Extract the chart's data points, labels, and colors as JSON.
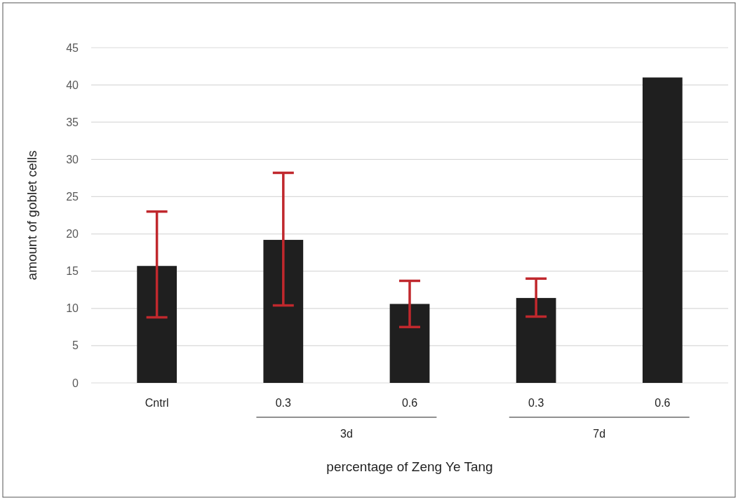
{
  "chart_data": {
    "type": "bar",
    "xlabel": "percentage of Zeng Ye Tang",
    "ylabel": "amount of goblet cells",
    "categories": [
      "Cntrl",
      "0.3",
      "0.6",
      "0.3",
      "0.6"
    ],
    "values": [
      15.7,
      19.2,
      10.6,
      11.4,
      41.0
    ],
    "errors": [
      [
        8.8,
        23.0
      ],
      [
        10.4,
        28.2
      ],
      [
        7.5,
        13.7
      ],
      [
        8.9,
        14.0
      ],
      null
    ],
    "color": "#1f1f1f",
    "ylim": [
      0,
      45
    ],
    "yticks": [
      0,
      5,
      10,
      15,
      20,
      25,
      30,
      35,
      40,
      45
    ],
    "grid": "y",
    "annotations": [
      "3d",
      "7d"
    ]
  }
}
